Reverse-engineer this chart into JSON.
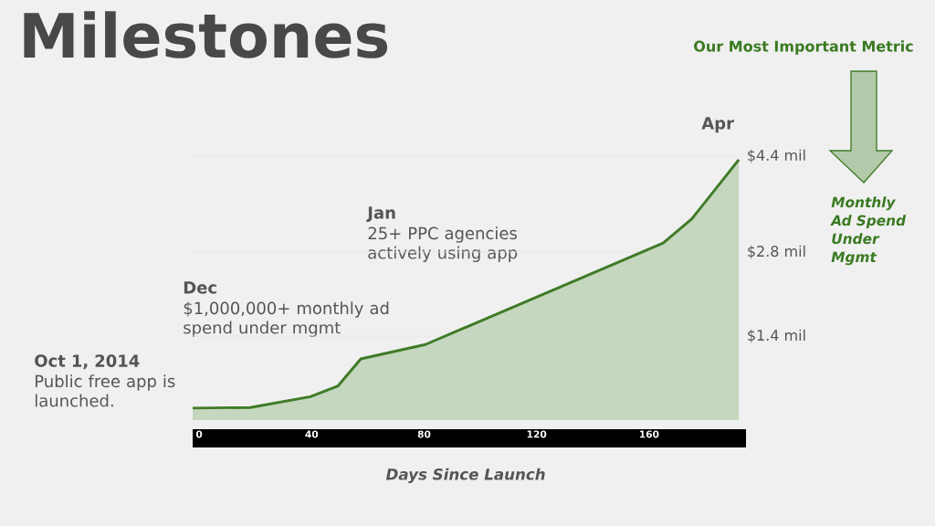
{
  "chart_data": {
    "type": "area",
    "title": "Milestones",
    "subtitle": "Our Most Important Metric",
    "xlabel": "Days Since Launch",
    "ylabel": "Monthly Ad Spend Under Mgmt",
    "x": [
      -2.3,
      18.2,
      39.6,
      49.4,
      57.5,
      80.5,
      165,
      175.3,
      191.9
    ],
    "values": [
      0.2,
      0.21,
      0.39,
      0.57,
      1.02,
      1.26,
      2.95,
      3.36,
      4.34
    ],
    "color": "#3e7b27",
    "xlim": [
      -2.3,
      191.9
    ],
    "xticks": [
      0,
      40,
      80,
      120,
      160
    ],
    "ylim": [
      0,
      4.4
    ],
    "yticks": [
      {
        "value": 1.4,
        "label": "$1.4 mil"
      },
      {
        "value": 2.8,
        "label": "$2.8 mil"
      },
      {
        "value": 4.4,
        "label": "$4.4 mil"
      }
    ],
    "grid": "y",
    "annotations": [
      "Oct 1, 2014",
      "Public free app is launched.",
      "Dec",
      "$1,000,000+ monthly ad spend under mgmt",
      "Jan",
      "25+ PPC agencies actively using app",
      "Apr"
    ]
  }
}
